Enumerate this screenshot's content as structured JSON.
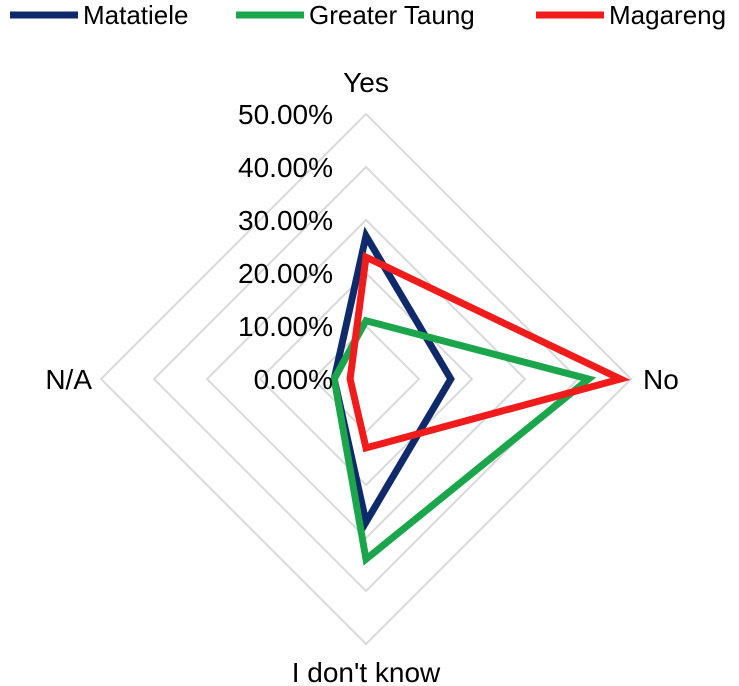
{
  "chart_data": {
    "type": "radar",
    "categories": [
      "Yes",
      "No",
      "I don't know",
      "N/A"
    ],
    "series": [
      {
        "name": "Matatiele",
        "color": "#0f2a6b",
        "values": [
          27.0,
          16.0,
          27.0,
          6.0
        ]
      },
      {
        "name": "Greater Taung",
        "color": "#1ca64c",
        "values": [
          11.0,
          42.0,
          34.0,
          6.0
        ]
      },
      {
        "name": "Magareng",
        "color": "#f01c1c",
        "values": [
          23.0,
          48.0,
          13.0,
          3.0
        ]
      }
    ],
    "r_ticks": [
      "0.00%",
      "10.00%",
      "20.00%",
      "30.00%",
      "40.00%",
      "50.00%"
    ],
    "r_range": [
      0,
      50
    ],
    "legend_position": "top",
    "grid": true
  }
}
